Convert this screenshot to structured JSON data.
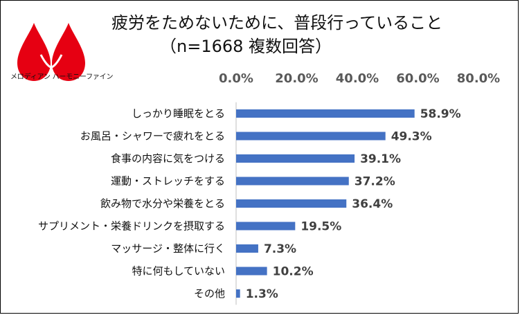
{
  "logo": {
    "brand_text": "メロディアン ハーモニーファイン",
    "brand_color": "#e60012"
  },
  "chart_data": {
    "type": "bar",
    "orientation": "horizontal",
    "title": "疲労をためないために、普段行っていること",
    "subtitle": "（n=1668 複数回答）",
    "categories": [
      "しっかり睡眠をとる",
      "お風呂・シャワーで疲れをとる",
      "食事の内容に気をつける",
      "運動・ストレッチをする",
      "飲み物で水分や栄養をとる",
      "サプリメント・栄養ドリンクを摂取する",
      "マッサージ・整体に行く",
      "特に何もしていない",
      "その他"
    ],
    "values": [
      58.9,
      49.3,
      39.1,
      37.2,
      36.4,
      19.5,
      7.3,
      10.2,
      1.3
    ],
    "data_labels": [
      "58.9%",
      "49.3%",
      "39.1%",
      "37.2%",
      "36.4%",
      "19.5%",
      "7.3%",
      "10.2%",
      "1.3%"
    ],
    "xlim": [
      0,
      80
    ],
    "x_ticks": [
      0,
      20,
      40,
      60,
      80
    ],
    "x_tick_labels": [
      "0.0%",
      "20.0%",
      "40.0%",
      "60.0%",
      "80.0%"
    ],
    "x_axis_position": "top",
    "bar_color": "#4472c4",
    "grid": false,
    "legend": "none"
  }
}
